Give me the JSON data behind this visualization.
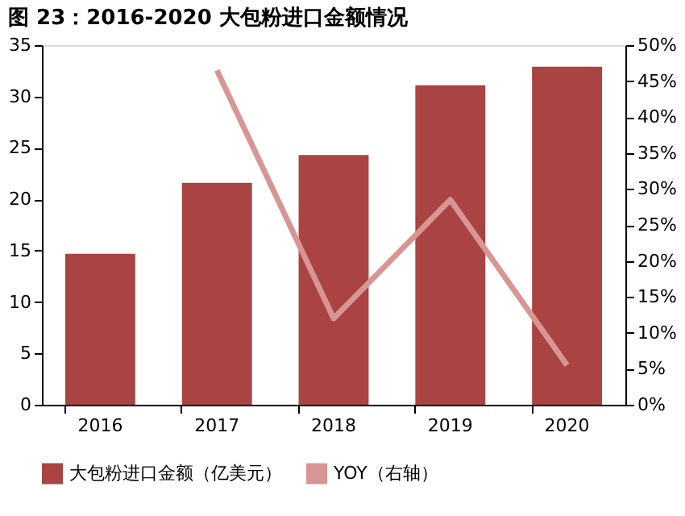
{
  "chart_data": {
    "type": "bar",
    "title": "图 23：2016-2020 大包粉进口金额情况",
    "categories": [
      "2016",
      "2017",
      "2018",
      "2019",
      "2020"
    ],
    "series": [
      {
        "name": "大包粉进口金额（亿美元）",
        "color": "#a94442",
        "values": [
          14.7,
          21.6,
          24.3,
          31.1,
          32.9
        ]
      },
      {
        "name": "YOY（右轴）",
        "type": "line",
        "axis": "y2",
        "color": "#d99594",
        "values": [
          null,
          46.5,
          12,
          28.5,
          5.5
        ]
      }
    ],
    "ylim": [
      0,
      35
    ],
    "yticks": [
      0,
      5,
      10,
      15,
      20,
      25,
      30,
      35
    ],
    "y2lim": [
      0,
      50
    ],
    "y2ticks": [
      {
        "value": 0,
        "label": "0%"
      },
      {
        "value": 5,
        "label": "5%"
      },
      {
        "value": 10,
        "label": "10%"
      },
      {
        "value": 15,
        "label": "15%"
      },
      {
        "value": 20,
        "label": "20%"
      },
      {
        "value": 25,
        "label": "25%"
      },
      {
        "value": 30,
        "label": "30%"
      },
      {
        "value": 35,
        "label": "35%"
      },
      {
        "value": 40,
        "label": "40%"
      },
      {
        "value": 45,
        "label": "45%"
      },
      {
        "value": 50,
        "label": "50%"
      }
    ],
    "grid": false,
    "legend": "bottom"
  }
}
